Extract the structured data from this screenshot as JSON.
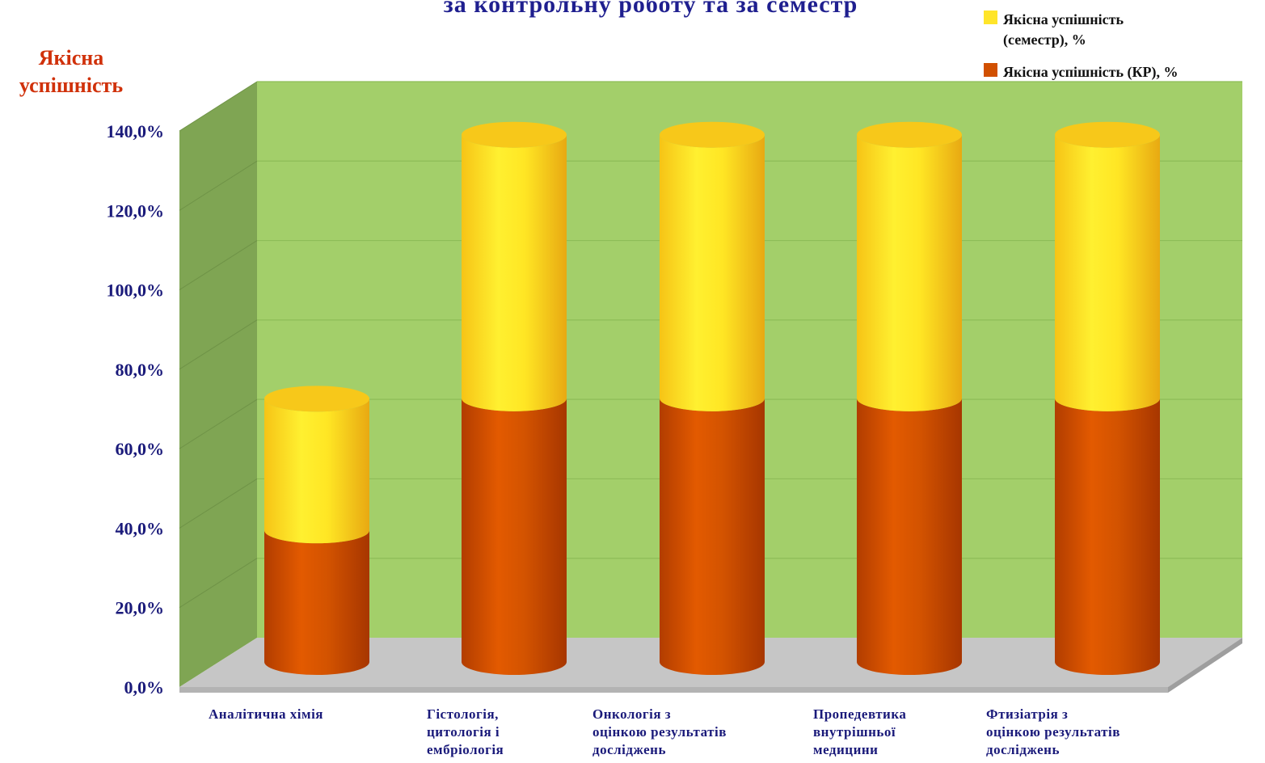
{
  "colors": {
    "back_wall": "#a3cf6a",
    "side_wall": "#7fa553",
    "floor": "#c6c6c6",
    "floor_edge": "#a9a9a9",
    "series_kr": "#d15000",
    "series_semester": "#ffe52a",
    "title": "#1f1f8f",
    "ylabel": "#d0310a",
    "axis_text": "#1a1a7a"
  },
  "chart_data": {
    "type": "bar",
    "stacked": true,
    "style": "3d-cylinder",
    "title": "за контрольну роботу та за семестр",
    "ylabel_lines": [
      "Якісна",
      "успішність"
    ],
    "xlabel": "",
    "ylim": [
      0,
      140
    ],
    "yticks": [
      0,
      20,
      40,
      60,
      80,
      100,
      120,
      140
    ],
    "ytick_labels": [
      "0,0%",
      "20,0%",
      "40,0%",
      "60,0%",
      "80,0%",
      "100,0%",
      "120,0%",
      "140,0%"
    ],
    "categories": [
      "Аналітична хімія",
      "Гістологія, цитологія і ембріологія",
      "Онкологія з оцінкою результатів досліджень",
      "Пропедевтика внутрішньої медицини",
      "Фтизіатрія з оцінкою результатів досліджень"
    ],
    "category_label_lines": [
      [
        "Аналітична хімія"
      ],
      [
        "Гістологія,",
        "цитологія і",
        "ембріологія"
      ],
      [
        "Онкологія з",
        "оцінкою результатів",
        "досліджень"
      ],
      [
        "Пропедевтика",
        "внутрішньої",
        "медицини"
      ],
      [
        "Фтизіатрія з",
        "оцінкою результатів",
        "досліджень"
      ]
    ],
    "series": [
      {
        "name": "Якісна успішність (КР), %",
        "values": [
          33.3,
          66.7,
          66.7,
          66.7,
          66.7
        ]
      },
      {
        "name": "Якісна успішність (семестр), %",
        "values": [
          33.3,
          66.7,
          66.7,
          66.7,
          66.7
        ]
      }
    ],
    "legend": {
      "placement": "top-right",
      "entries": [
        {
          "series_index": 1,
          "lines": [
            "Якісна успішність",
            "(семестр), %"
          ]
        },
        {
          "series_index": 0,
          "lines": [
            "Якісна успішність (КР), %"
          ]
        }
      ]
    },
    "grid": true
  }
}
